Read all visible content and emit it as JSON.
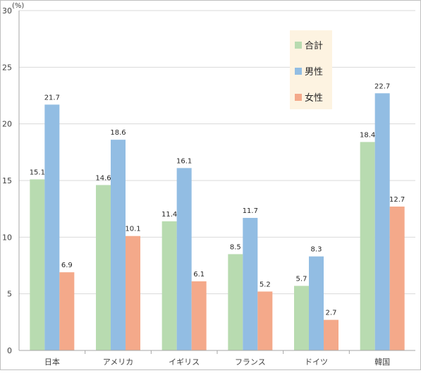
{
  "chart_data": {
    "type": "bar",
    "unit_label": "(%)",
    "categories": [
      "日本",
      "アメリカ",
      "イギリス",
      "フランス",
      "ドイツ",
      "韓国"
    ],
    "series": [
      {
        "name": "合計",
        "color": "#b8dbb0",
        "values": [
          15.1,
          14.6,
          11.4,
          8.5,
          5.7,
          18.4
        ]
      },
      {
        "name": "男性",
        "color": "#92bde3",
        "values": [
          21.7,
          18.6,
          16.1,
          11.7,
          8.3,
          22.7
        ]
      },
      {
        "name": "女性",
        "color": "#f4a98a",
        "values": [
          6.9,
          10.1,
          6.1,
          5.2,
          2.7,
          12.7
        ]
      }
    ],
    "data_labels": [
      [
        "15.1",
        "14.6",
        "11.4",
        "8.5",
        "5.7",
        "18.4"
      ],
      [
        "21.7",
        "18.6",
        "16.1",
        "11.7",
        "8.3",
        "22.7"
      ],
      [
        "6.9",
        "10.1",
        "6.1",
        "5.2",
        "2.7",
        "12.7"
      ]
    ],
    "yticks": [
      "0",
      "5",
      "10",
      "15",
      "20",
      "25",
      "30"
    ],
    "ylim": [
      0,
      30
    ],
    "grid": true,
    "legend_position": "top-right",
    "legend_background": "#fdf3e1"
  }
}
